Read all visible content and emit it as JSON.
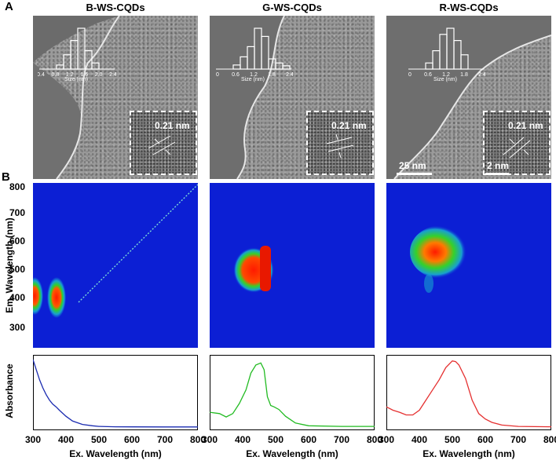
{
  "panel_labels": {
    "a": "A",
    "b": "B"
  },
  "columns": [
    {
      "title": "B-WS-CQDs",
      "inset_label": "0.21 nm",
      "scale_bar": "",
      "hist_ticks": [
        "0.4",
        "0.8",
        "1.2",
        "1.6",
        "2.0",
        "2.4"
      ],
      "hist_xlabel": "Size (nm)",
      "hist_values": [
        0.1,
        0.35,
        0.7,
        1.0,
        0.45,
        0.15
      ]
    },
    {
      "title": "G-WS-CQDs",
      "inset_label": "0.21 nm",
      "scale_bar": "25 nm",
      "hist_ticks": [
        "0",
        "0.6",
        "1.2",
        "1.8",
        "2.4"
      ],
      "hist_xlabel": "Size (nm)",
      "hist_values": [
        0.1,
        0.3,
        0.55,
        1.0,
        0.8,
        0.25,
        0.15,
        0.08
      ]
    },
    {
      "title": "R-WS-CQDs",
      "inset_label": "0.21 nm",
      "scale_bar": "2 nm",
      "hist_ticks": [
        "0",
        "0.6",
        "1.2",
        "1.8",
        "2.4"
      ],
      "hist_xlabel": "Size (nm)",
      "hist_values": [
        0.15,
        0.45,
        0.85,
        1.0,
        0.7,
        0.35
      ]
    }
  ],
  "em_axis": {
    "label": "Em. Wavelength (nm)",
    "ticks": [
      "800",
      "700",
      "600",
      "500",
      "400",
      "300"
    ]
  },
  "abs_axis": {
    "label": "Absorbance"
  },
  "ex_axis": {
    "label": "Ex. Wavelength (nm)",
    "ticks": [
      "300",
      "400",
      "500",
      "600",
      "700",
      "800"
    ]
  },
  "chart_data": [
    {
      "type": "line",
      "title": "B-WS-CQDs",
      "xlabel": "Ex. Wavelength (nm)",
      "ylabel": "Absorbance",
      "xlim": [
        300,
        800
      ],
      "color": "#1a2bb0",
      "x": [
        300,
        310,
        320,
        330,
        340,
        350,
        360,
        370,
        380,
        400,
        420,
        450,
        480,
        500,
        550,
        600,
        700,
        800
      ],
      "y": [
        1.0,
        0.85,
        0.7,
        0.58,
        0.48,
        0.4,
        0.34,
        0.3,
        0.25,
        0.16,
        0.09,
        0.04,
        0.02,
        0.01,
        0.005,
        0.003,
        0.002,
        0.002
      ]
    },
    {
      "type": "line",
      "title": "G-WS-CQDs",
      "xlabel": "Ex. Wavelength (nm)",
      "ylabel": "Absorbance",
      "xlim": [
        300,
        800
      ],
      "color": "#22bb22",
      "x": [
        300,
        330,
        350,
        370,
        390,
        410,
        425,
        440,
        455,
        465,
        475,
        485,
        495,
        510,
        530,
        560,
        600,
        700,
        800
      ],
      "y": [
        0.22,
        0.2,
        0.15,
        0.2,
        0.35,
        0.55,
        0.8,
        0.92,
        0.95,
        0.85,
        0.45,
        0.32,
        0.3,
        0.26,
        0.16,
        0.06,
        0.02,
        0.01,
        0.01
      ]
    },
    {
      "type": "line",
      "title": "R-WS-CQDs",
      "xlabel": "Ex. Wavelength (nm)",
      "ylabel": "Absorbance",
      "xlim": [
        300,
        800
      ],
      "color": "#e53030",
      "x": [
        300,
        320,
        340,
        360,
        380,
        400,
        420,
        440,
        460,
        480,
        500,
        510,
        520,
        540,
        560,
        580,
        600,
        620,
        650,
        700,
        800
      ],
      "y": [
        0.3,
        0.25,
        0.22,
        0.18,
        0.18,
        0.25,
        0.4,
        0.55,
        0.7,
        0.88,
        0.98,
        0.97,
        0.92,
        0.72,
        0.4,
        0.2,
        0.12,
        0.07,
        0.03,
        0.01,
        0.005
      ]
    }
  ]
}
